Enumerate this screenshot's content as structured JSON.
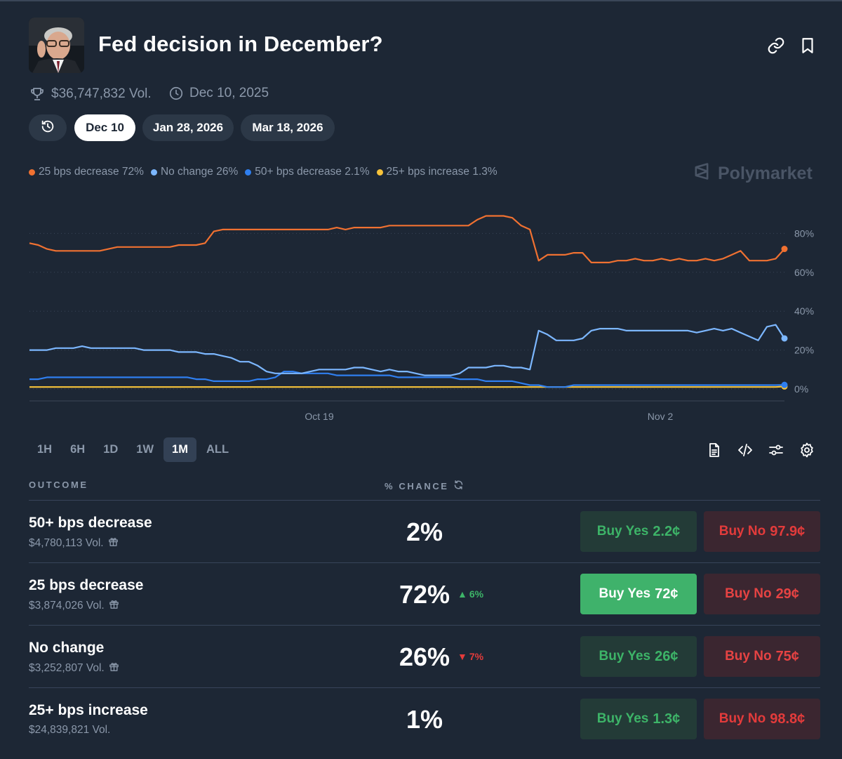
{
  "header": {
    "title": "Fed decision in December?",
    "volume": "$36,747,832 Vol.",
    "end_date": "Dec 10, 2025",
    "icons": [
      "link-icon",
      "bookmark-icon",
      "trophy-icon",
      "clock-icon"
    ]
  },
  "date_tabs": [
    {
      "label": "Dec 10",
      "active": true
    },
    {
      "label": "Jan 28, 2026",
      "active": false
    },
    {
      "label": "Mar 18, 2026",
      "active": false
    }
  ],
  "legend": [
    {
      "label": "25 bps decrease 72%",
      "color": "#f07131"
    },
    {
      "label": "No change 26%",
      "color": "#7cb7ff"
    },
    {
      "label": "50+ bps decrease 2.1%",
      "color": "#2f7ff0"
    },
    {
      "label": "25+ bps increase 1.3%",
      "color": "#f7c33a"
    }
  ],
  "watermark": "Polymarket",
  "chart_data": {
    "type": "line",
    "x_ticks": [
      "Oct 19",
      "Nov 2"
    ],
    "y_ticks": [
      "80%",
      "60%",
      "40%",
      "20%",
      "0%"
    ],
    "y_range": [
      0,
      100
    ],
    "grid": true,
    "series": [
      {
        "name": "25 bps decrease",
        "color": "#f07131",
        "values": [
          75,
          74,
          72,
          71,
          71,
          71,
          71,
          71,
          71,
          72,
          73,
          73,
          73,
          73,
          73,
          73,
          73,
          74,
          74,
          74,
          75,
          81,
          82,
          82,
          82,
          82,
          82,
          82,
          82,
          82,
          82,
          82,
          82,
          82,
          82,
          83,
          82,
          83,
          83,
          83,
          83,
          84,
          84,
          84,
          84,
          84,
          84,
          84,
          84,
          84,
          84,
          87,
          89,
          89,
          89,
          88,
          84,
          82,
          66,
          69,
          69,
          69,
          70,
          70,
          65,
          65,
          65,
          66,
          66,
          67,
          66,
          66,
          67,
          66,
          67,
          66,
          66,
          67,
          66,
          67,
          69,
          71,
          66,
          66,
          66,
          67,
          72
        ]
      },
      {
        "name": "No change",
        "color": "#7cb7ff",
        "values": [
          20,
          20,
          20,
          21,
          21,
          21,
          22,
          21,
          21,
          21,
          21,
          21,
          21,
          20,
          20,
          20,
          20,
          19,
          19,
          19,
          18,
          18,
          17,
          16,
          14,
          14,
          12,
          9,
          8,
          8,
          8,
          8,
          9,
          10,
          10,
          10,
          10,
          11,
          11,
          10,
          9,
          10,
          9,
          9,
          8,
          7,
          7,
          7,
          7,
          8,
          11,
          11,
          11,
          12,
          12,
          11,
          11,
          10,
          30,
          28,
          25,
          25,
          25,
          26,
          30,
          31,
          31,
          31,
          30,
          30,
          30,
          30,
          30,
          30,
          30,
          30,
          29,
          30,
          31,
          30,
          31,
          29,
          27,
          25,
          32,
          33,
          26
        ]
      },
      {
        "name": "50+ bps decrease",
        "color": "#2f7ff0",
        "values": [
          5,
          5,
          6,
          6,
          6,
          6,
          6,
          6,
          6,
          6,
          6,
          6,
          6,
          6,
          6,
          6,
          6,
          6,
          6,
          5,
          5,
          4,
          4,
          4,
          4,
          4,
          5,
          5,
          6,
          9,
          9,
          8,
          8,
          8,
          8,
          7,
          7,
          7,
          7,
          7,
          7,
          7,
          6,
          6,
          6,
          6,
          6,
          6,
          6,
          5,
          5,
          5,
          4,
          4,
          4,
          4,
          3,
          2,
          2,
          1,
          1,
          1,
          2,
          2,
          2,
          2,
          2,
          2,
          2,
          2,
          2,
          2,
          2,
          2,
          2,
          2,
          2,
          2,
          2,
          2,
          2,
          2,
          2,
          2,
          2,
          2,
          2.1
        ]
      },
      {
        "name": "25+ bps increase",
        "color": "#f7c33a",
        "values": [
          1,
          1,
          1,
          1,
          1,
          1,
          1,
          1,
          1,
          1,
          1,
          1,
          1,
          1,
          1,
          1,
          1,
          1,
          1,
          1,
          1,
          1,
          1,
          1,
          1,
          1,
          1,
          1,
          1,
          1,
          1,
          1,
          1,
          1,
          1,
          1,
          1,
          1,
          1,
          1,
          1,
          1,
          1,
          1,
          1,
          1,
          1,
          1,
          1,
          1,
          1,
          1,
          1,
          1,
          1,
          1,
          1,
          1,
          1,
          1,
          1,
          1,
          1,
          1,
          1,
          1,
          1,
          1,
          1,
          1,
          1,
          1,
          1,
          1,
          1,
          1,
          1,
          1,
          1,
          1,
          1,
          1,
          1,
          1,
          1,
          1,
          1.3
        ]
      }
    ]
  },
  "time_ranges": [
    {
      "label": "1H",
      "active": false
    },
    {
      "label": "6H",
      "active": false
    },
    {
      "label": "1D",
      "active": false
    },
    {
      "label": "1W",
      "active": false
    },
    {
      "label": "1M",
      "active": true
    },
    {
      "label": "ALL",
      "active": false
    }
  ],
  "tools": [
    "document-icon",
    "embed-code-icon",
    "sliders-icon",
    "settings-gear-icon"
  ],
  "table": {
    "col_outcome": "OUTCOME",
    "col_chance": "% CHANCE",
    "rows": [
      {
        "name": "50+ bps decrease",
        "volume": "$4,780,113 Vol.",
        "gift": true,
        "chance": "2%",
        "change": "",
        "change_dir": "",
        "yes_label": "Buy Yes",
        "yes_price": "2.2¢",
        "no_label": "Buy No",
        "no_price": "97.9¢",
        "highlight": false
      },
      {
        "name": "25 bps decrease",
        "volume": "$3,874,026 Vol.",
        "gift": true,
        "chance": "72%",
        "change": "6%",
        "change_dir": "up",
        "yes_label": "Buy Yes",
        "yes_price": "72¢",
        "no_label": "Buy No",
        "no_price": "29¢",
        "highlight": true
      },
      {
        "name": "No change",
        "volume": "$3,252,807 Vol.",
        "gift": true,
        "chance": "26%",
        "change": "7%",
        "change_dir": "down",
        "yes_label": "Buy Yes",
        "yes_price": "26¢",
        "no_label": "Buy No",
        "no_price": "75¢",
        "highlight": false
      },
      {
        "name": "25+ bps increase",
        "volume": "$24,839,821 Vol.",
        "gift": false,
        "chance": "1%",
        "change": "",
        "change_dir": "",
        "yes_label": "Buy Yes",
        "yes_price": "1.3¢",
        "no_label": "Buy No",
        "no_price": "98.8¢",
        "highlight": false
      }
    ]
  },
  "colors": {
    "background": "#1d2735",
    "yes_green": "#3db468",
    "no_red": "#e33b3b",
    "muted": "#8b98aa"
  }
}
